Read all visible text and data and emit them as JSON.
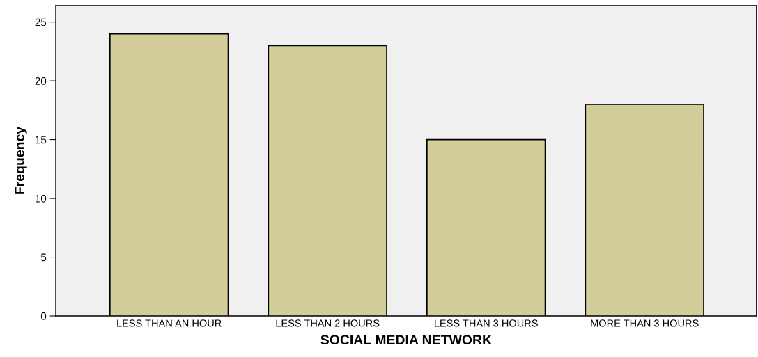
{
  "chart_data": {
    "type": "bar",
    "xlabel": "SOCIAL MEDIA NETWORK",
    "ylabel": "Frequency",
    "categories": [
      "LESS THAN AN HOUR",
      "LESS THAN 2 HOURS",
      "LESS THAN 3 HOURS",
      "MORE THAN 3 HOURS"
    ],
    "values": [
      24,
      23,
      15,
      18
    ],
    "color": "#d3ce99",
    "ylim": [
      0,
      26.4
    ],
    "yticks": [
      0,
      5,
      10,
      15,
      20,
      25
    ],
    "grid": false
  }
}
